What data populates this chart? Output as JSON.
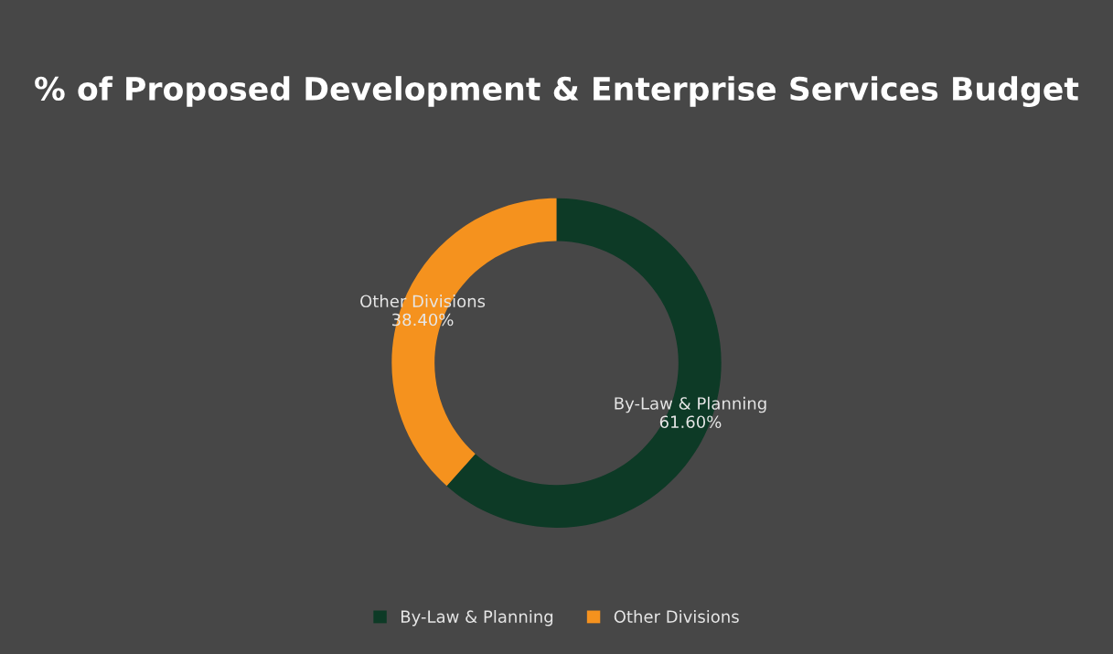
{
  "chart_data": {
    "type": "donut",
    "title": "% of Proposed Development & Enterprise Services Budget",
    "categories": [
      "By-Law & Planning",
      "Other Divisions"
    ],
    "values": [
      61.6,
      38.4
    ],
    "value_labels": [
      "61.60%",
      "38.40%"
    ],
    "colors": [
      "#0d3a26",
      "#f5921e"
    ],
    "legend": "bottom"
  }
}
